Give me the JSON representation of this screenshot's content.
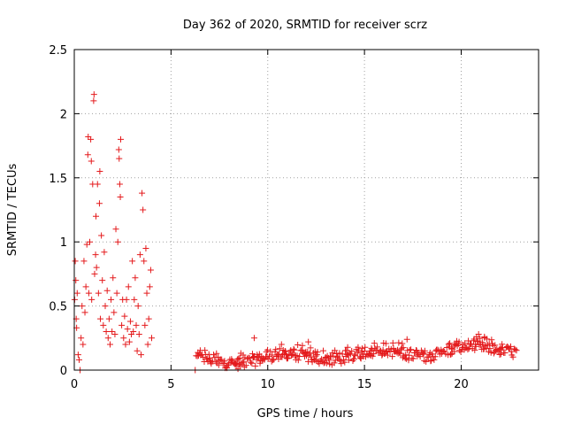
{
  "chart_data": {
    "type": "scatter",
    "title": "Day 362 of 2020, SRMTID for receiver scrz",
    "xlabel": "GPS time / hours",
    "ylabel": "SRMTID / TECUs",
    "xlim": [
      0,
      24
    ],
    "ylim": [
      0,
      2.5
    ],
    "x_ticks": [
      0,
      5,
      10,
      15,
      20
    ],
    "x_tick_labels": [
      "0",
      "5",
      "10",
      "15",
      "20"
    ],
    "y_ticks": [
      0,
      0.5,
      1,
      1.5,
      2,
      2.5
    ],
    "y_tick_labels": [
      "0",
      "0.5",
      "1",
      "1.5",
      "2",
      "2.5"
    ],
    "grid": true,
    "marker": "+",
    "color": "#e41a1c",
    "series": [
      {
        "name": "SRMTID",
        "points": [
          [
            0.02,
            0.55
          ],
          [
            0.05,
            0.85
          ],
          [
            0.08,
            0.7
          ],
          [
            0.1,
            0.4
          ],
          [
            0.12,
            0.33
          ],
          [
            0.15,
            0.6
          ],
          [
            0.2,
            0.12
          ],
          [
            0.25,
            0.08
          ],
          [
            0.3,
            0.0
          ],
          [
            0.35,
            0.25
          ],
          [
            0.4,
            0.5
          ],
          [
            0.45,
            0.2
          ],
          [
            0.5,
            0.85
          ],
          [
            0.55,
            0.45
          ],
          [
            0.6,
            0.65
          ],
          [
            0.65,
            0.98
          ],
          [
            0.7,
            1.68
          ],
          [
            0.72,
            1.82
          ],
          [
            0.75,
            0.6
          ],
          [
            0.8,
            1.0
          ],
          [
            0.85,
            1.8
          ],
          [
            0.88,
            1.63
          ],
          [
            0.9,
            0.55
          ],
          [
            0.95,
            1.45
          ],
          [
            1.0,
            2.1
          ],
          [
            1.02,
            2.15
          ],
          [
            1.05,
            0.75
          ],
          [
            1.1,
            0.9
          ],
          [
            1.12,
            1.2
          ],
          [
            1.15,
            0.8
          ],
          [
            1.2,
            1.45
          ],
          [
            1.25,
            0.6
          ],
          [
            1.3,
            1.3
          ],
          [
            1.32,
            1.55
          ],
          [
            1.35,
            0.4
          ],
          [
            1.4,
            1.05
          ],
          [
            1.45,
            0.7
          ],
          [
            1.5,
            0.35
          ],
          [
            1.55,
            0.92
          ],
          [
            1.6,
            0.5
          ],
          [
            1.65,
            0.3
          ],
          [
            1.7,
            0.62
          ],
          [
            1.75,
            0.25
          ],
          [
            1.8,
            0.4
          ],
          [
            1.85,
            0.2
          ],
          [
            1.9,
            0.55
          ],
          [
            1.95,
            0.3
          ],
          [
            2.0,
            0.72
          ],
          [
            2.05,
            0.45
          ],
          [
            2.1,
            0.28
          ],
          [
            2.15,
            1.1
          ],
          [
            2.2,
            0.6
          ],
          [
            2.25,
            1.0
          ],
          [
            2.3,
            1.72
          ],
          [
            2.32,
            1.65
          ],
          [
            2.35,
            1.45
          ],
          [
            2.38,
            1.35
          ],
          [
            2.4,
            1.8
          ],
          [
            2.45,
            0.35
          ],
          [
            2.5,
            0.55
          ],
          [
            2.55,
            0.25
          ],
          [
            2.6,
            0.42
          ],
          [
            2.65,
            0.2
          ],
          [
            2.7,
            0.55
          ],
          [
            2.75,
            0.32
          ],
          [
            2.8,
            0.65
          ],
          [
            2.85,
            0.22
          ],
          [
            2.9,
            0.38
          ],
          [
            2.95,
            0.28
          ],
          [
            3.0,
            0.85
          ],
          [
            3.05,
            0.3
          ],
          [
            3.1,
            0.55
          ],
          [
            3.15,
            0.72
          ],
          [
            3.2,
            0.35
          ],
          [
            3.25,
            0.15
          ],
          [
            3.3,
            0.5
          ],
          [
            3.35,
            0.28
          ],
          [
            3.4,
            0.9
          ],
          [
            3.45,
            0.12
          ],
          [
            3.5,
            1.38
          ],
          [
            3.55,
            1.25
          ],
          [
            3.6,
            0.85
          ],
          [
            3.65,
            0.35
          ],
          [
            3.7,
            0.95
          ],
          [
            3.75,
            0.6
          ],
          [
            3.8,
            0.2
          ],
          [
            3.85,
            0.4
          ],
          [
            3.9,
            0.65
          ],
          [
            3.95,
            0.78
          ],
          [
            4.0,
            0.25
          ]
        ]
      }
    ]
  }
}
